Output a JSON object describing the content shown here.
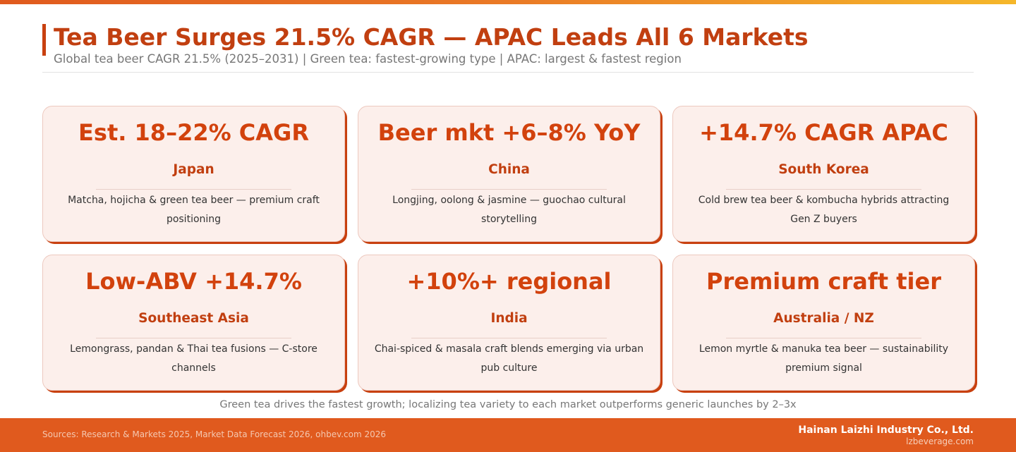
{
  "header": {
    "title": "Tea Beer Surges 21.5% CAGR — APAC Leads All 6 Markets",
    "subtitle": "Global tea beer CAGR 21.5% (2025–2031) | Green tea: fastest-growing type | APAC: largest & fastest region"
  },
  "cards": [
    {
      "metric": "Est. 18–22% CAGR",
      "region": "Japan",
      "desc": "Matcha, hojicha & green tea beer — premium craft positioning"
    },
    {
      "metric": "Beer mkt +6–8% YoY",
      "region": "China",
      "desc": "Longjing, oolong & jasmine — guochao cultural storytelling"
    },
    {
      "metric": "+14.7% CAGR APAC",
      "region": "South Korea",
      "desc": "Cold brew tea beer & kombucha hybrids attracting Gen Z buyers"
    },
    {
      "metric": "Low-ABV +14.7%",
      "region": "Southeast Asia",
      "desc": "Lemongrass, pandan & Thai tea fusions — C-store channels"
    },
    {
      "metric": "+10%+ regional",
      "region": "India",
      "desc": "Chai-spiced & masala craft blends emerging via urban pub culture"
    },
    {
      "metric": "Premium craft tier",
      "region": "Australia / NZ",
      "desc": "Lemon myrtle & manuka tea beer — sustainability premium signal"
    }
  ],
  "footnote": "Green tea drives the fastest growth; localizing tea variety to each market outperforms generic launches by 2–3x",
  "footer": {
    "sources": "Sources: Research & Markets 2025, Market Data Forecast 2026, ohbev.com 2026",
    "company": "Hainan Laizhi Industry Co., Ltd.",
    "website": "lzbeverage.com"
  },
  "colors": {
    "accent": "#c13f10",
    "metric": "#d2420d",
    "card_bg": "#fcefeb",
    "footer_bg": "#e05a1e"
  }
}
